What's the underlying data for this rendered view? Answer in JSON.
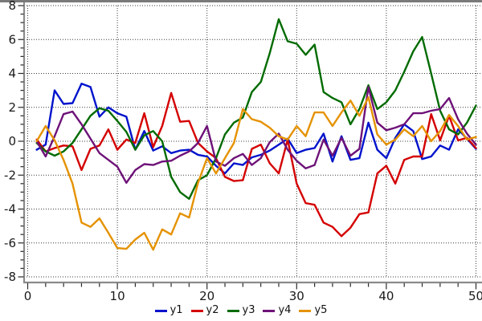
{
  "panel": {
    "top_border_color": "#7a7a7a",
    "background": "#ffffff"
  },
  "chart_data": {
    "type": "line",
    "title": "",
    "xlabel": "",
    "ylabel": "",
    "xlim": [
      0,
      50
    ],
    "ylim": [
      -8,
      8
    ],
    "grid": "dotted",
    "grid_color": "#3c3c3c",
    "spine_color": "#8a8a8a",
    "tick_color": "#2a2a2a",
    "label_color": "#1a1a1a",
    "x_ticks_major": [
      0,
      10,
      20,
      30,
      40,
      50
    ],
    "x_tick_labels": [
      "0",
      "10",
      "20",
      "30",
      "40",
      "50"
    ],
    "x_minor_step": 2,
    "y_ticks_major": [
      8,
      6,
      4,
      2,
      0,
      -2,
      -4,
      -6,
      -8
    ],
    "y_tick_labels": [
      "8",
      "6",
      "4",
      "2",
      "0",
      "-2",
      "-4",
      "-6",
      "-8"
    ],
    "y_minor_step": 0.5,
    "legend_position": "bottom-center",
    "x": [
      1,
      2,
      3,
      4,
      5,
      6,
      7,
      8,
      9,
      10,
      11,
      12,
      13,
      14,
      15,
      16,
      17,
      18,
      19,
      20,
      21,
      22,
      23,
      24,
      25,
      26,
      27,
      28,
      29,
      30,
      31,
      32,
      33,
      34,
      35,
      36,
      37,
      38,
      39,
      40,
      41,
      42,
      43,
      44,
      45,
      46,
      47,
      48,
      49,
      50
    ],
    "series": [
      {
        "name": "y1",
        "color": "#0013cc",
        "values": [
          -0.5,
          -0.2,
          3.0,
          2.2,
          2.25,
          3.4,
          3.2,
          1.45,
          2.0,
          1.65,
          1.45,
          -0.5,
          0.6,
          -0.55,
          -0.3,
          -0.7,
          -0.55,
          -0.5,
          -0.8,
          -0.9,
          -1.45,
          -1.9,
          -1.3,
          -1.4,
          -0.95,
          -0.8,
          -0.55,
          -0.2,
          0.15,
          -0.7,
          -0.5,
          -0.4,
          0.45,
          -1.2,
          0.3,
          -1.1,
          -1.0,
          1.1,
          -0.5,
          -1.0,
          0.2,
          1.0,
          0.6,
          -1.05,
          -0.9,
          -0.25,
          -0.5,
          0.7,
          0.15,
          -0.45
        ]
      },
      {
        "name": "y2",
        "color": "#d40000",
        "values": [
          0.1,
          -0.6,
          -0.4,
          -0.25,
          -0.3,
          -1.7,
          -0.45,
          -0.25,
          0.7,
          -0.5,
          0.1,
          -0.1,
          1.65,
          -0.35,
          0.9,
          2.85,
          1.15,
          1.2,
          -0.1,
          -0.6,
          -1.0,
          -2.1,
          -2.35,
          -2.3,
          -0.45,
          -0.2,
          -1.3,
          -1.9,
          0.1,
          -2.5,
          -3.65,
          -3.75,
          -4.8,
          -5.05,
          -5.6,
          -5.1,
          -4.3,
          -4.2,
          -1.9,
          -1.45,
          -2.5,
          -1.1,
          -0.9,
          -0.9,
          1.6,
          0.05,
          1.5,
          0.05,
          0.2,
          -0.4
        ]
      },
      {
        "name": "y3",
        "color": "#006b00",
        "values": [
          -0.1,
          -0.6,
          -0.85,
          -0.6,
          -0.1,
          0.7,
          1.5,
          1.95,
          1.8,
          1.2,
          0.55,
          -0.5,
          0.35,
          0.6,
          0.0,
          -2.1,
          -3.0,
          -3.4,
          -2.3,
          -2.0,
          -1.0,
          0.4,
          1.1,
          1.4,
          2.9,
          3.5,
          5.2,
          7.2,
          5.9,
          5.75,
          5.1,
          5.7,
          2.9,
          2.55,
          2.3,
          1.0,
          1.9,
          3.3,
          1.9,
          2.3,
          3.0,
          4.1,
          5.3,
          6.15,
          4.0,
          1.8,
          0.7,
          0.4,
          1.1,
          2.1
        ]
      },
      {
        "name": "y4",
        "color": "#6e1278",
        "values": [
          0.0,
          -0.9,
          0.3,
          1.6,
          1.75,
          1.0,
          0.15,
          -0.7,
          -1.1,
          -1.5,
          -2.45,
          -1.7,
          -1.35,
          -1.4,
          -1.2,
          -1.15,
          -0.85,
          -0.6,
          -0.1,
          0.9,
          -1.2,
          -1.45,
          -1.0,
          -0.75,
          -1.4,
          -1.0,
          -0.05,
          0.45,
          -0.5,
          -1.15,
          -1.6,
          -1.4,
          0.1,
          -0.85,
          0.2,
          -0.85,
          -0.45,
          3.2,
          1.1,
          0.65,
          0.8,
          1.0,
          1.65,
          1.65,
          1.8,
          1.9,
          2.55,
          1.3,
          0.45,
          -0.2
        ]
      },
      {
        "name": "y5",
        "color": "#e59200",
        "values": [
          0.0,
          0.9,
          0.05,
          -1.1,
          -2.5,
          -4.8,
          -5.05,
          -4.55,
          -5.4,
          -6.3,
          -6.35,
          -5.8,
          -5.4,
          -6.4,
          -5.2,
          -5.5,
          -4.25,
          -4.5,
          -2.45,
          -1.0,
          -1.9,
          -1.0,
          -0.1,
          1.9,
          1.3,
          1.15,
          0.8,
          0.3,
          0.1,
          0.9,
          0.3,
          1.7,
          1.7,
          0.9,
          1.7,
          2.4,
          1.5,
          2.6,
          0.4,
          -0.2,
          0.1,
          0.7,
          0.3,
          0.9,
          0.0,
          0.6,
          1.55,
          0.9,
          0.1,
          0.25
        ]
      }
    ]
  }
}
